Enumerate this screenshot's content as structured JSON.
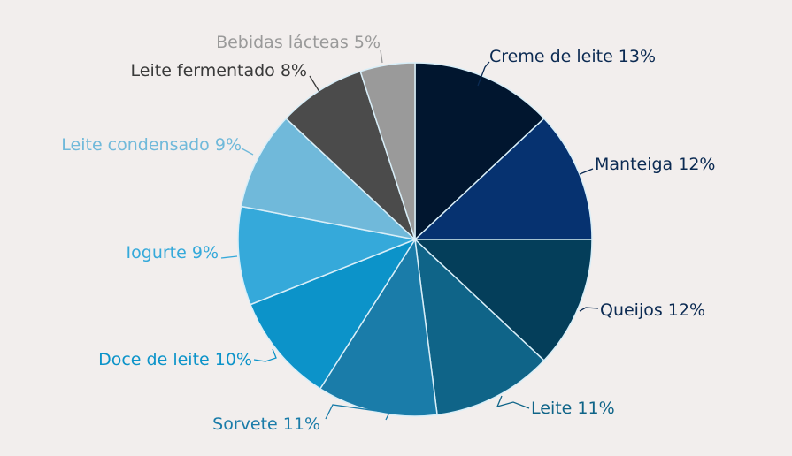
{
  "chart_data": {
    "type": "pie",
    "title": "",
    "categories": [
      "Creme de leite",
      "Manteiga",
      "Queijos",
      "Leite",
      "Sorvete",
      "Doce de leite",
      "Iogurte",
      "Leite condensado",
      "Leite fermentado",
      "Bebidas lácteas"
    ],
    "values": [
      13,
      12,
      12,
      11,
      11,
      10,
      9,
      9,
      8,
      5
    ],
    "labels": [
      "Creme de leite 13%",
      "Manteiga 12%",
      "Queijos 12%",
      "Leite 11%",
      "Sorvete 11%",
      "Doce de leite 10%",
      "Iogurte 9%",
      "Leite condensado 9%",
      "Leite fermentado 8%",
      "Bebidas lácteas 5%"
    ],
    "colors": [
      "#01162f",
      "#063270",
      "#043e5a",
      "#0f6488",
      "#1a7ca9",
      "#0c93c9",
      "#35a9da",
      "#70b9da",
      "#4b4b4b",
      "#9a9a9a"
    ],
    "label_colors": [
      "#0b2a52",
      "#0b2a52",
      "#0b2a52",
      "#0f6488",
      "#1a7ca9",
      "#0c93c9",
      "#35a9da",
      "#70b9da",
      "#3a3a3a",
      "#9a9a9a"
    ],
    "start": "top",
    "direction": "clockwise",
    "legend": "none"
  }
}
